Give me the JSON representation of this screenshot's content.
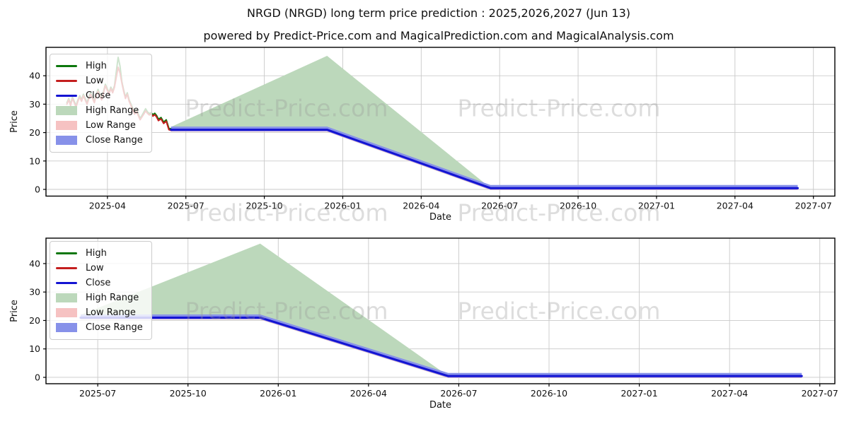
{
  "page": {
    "title": "NRGD (NRGD) long term price prediction : 2025,2026,2027 (Jun 13)",
    "subtitle": "powered by Predict-Price.com and MagicalPrediction.com and MagicalAnalysis.com",
    "watermark_text": "Predict-Price.com"
  },
  "colors": {
    "high_line": "#0c770c",
    "low_line": "#c41e1e",
    "close_line": "#1414d2",
    "high_range_fill": "#bcd8bb",
    "low_range_fill": "#f6c2c2",
    "close_range_fill": "#8791e9",
    "grid": "#c9c9c9",
    "axis": "#000000",
    "text": "#111111",
    "watermark": "#999999"
  },
  "legend": {
    "items": [
      {
        "label": "High",
        "type": "line",
        "color_key": "high_line"
      },
      {
        "label": "Low",
        "type": "line",
        "color_key": "low_line"
      },
      {
        "label": "Close",
        "type": "line",
        "color_key": "close_line"
      },
      {
        "label": "High Range",
        "type": "patch",
        "color_key": "high_range_fill"
      },
      {
        "label": "Low Range",
        "type": "patch",
        "color_key": "low_range_fill"
      },
      {
        "label": "Close Range",
        "type": "patch",
        "color_key": "close_range_fill"
      }
    ]
  },
  "chart_data": [
    {
      "type": "area",
      "title": "top: history + long term prediction",
      "xlabel": "Date",
      "ylabel": "Price",
      "x_unit": "months since 2025-01-01",
      "xlim": [
        0.65,
        30.82
      ],
      "ylim": [
        -2.36,
        50.0
      ],
      "grid": true,
      "legend_position": "upper left",
      "x_ticks": [
        {
          "t": 3,
          "label": "2025-04"
        },
        {
          "t": 6,
          "label": "2025-07"
        },
        {
          "t": 9,
          "label": "2025-10"
        },
        {
          "t": 12,
          "label": "2026-01"
        },
        {
          "t": 15,
          "label": "2026-04"
        },
        {
          "t": 18,
          "label": "2026-07"
        },
        {
          "t": 21,
          "label": "2026-10"
        },
        {
          "t": 24,
          "label": "2027-01"
        },
        {
          "t": 27,
          "label": "2027-04"
        },
        {
          "t": 30,
          "label": "2027-07"
        }
      ],
      "y_ticks": [
        0,
        10,
        20,
        30,
        40
      ],
      "prediction_start_date": "2025-06-13",
      "peak_date": "2025-12-13",
      "peak_high": 47,
      "flat_close_value": 21,
      "end_close_value": 0.45,
      "end_date": "2027-06-13",
      "series": {
        "hist_low": {
          "x": [
            1.45,
            1.52,
            1.59,
            1.66,
            1.73,
            1.8,
            1.87,
            1.94,
            2.01,
            2.08,
            2.15,
            2.22,
            2.29,
            2.36,
            2.43,
            2.5,
            2.57,
            2.64,
            2.71,
            2.78,
            2.85,
            2.92,
            2.99,
            3.06,
            3.13,
            3.2,
            3.27,
            3.34,
            3.41,
            3.48,
            3.55,
            3.62,
            3.69,
            3.76,
            3.83,
            3.9,
            3.97,
            4.04,
            4.11,
            4.18,
            4.25,
            4.32,
            4.39,
            4.46,
            4.53,
            4.6,
            4.67,
            4.74,
            4.81,
            4.88,
            4.95,
            5.05,
            5.15,
            5.25,
            5.35,
            5.43
          ],
          "y": [
            30,
            31.5,
            29.5,
            32,
            30.5,
            29,
            31,
            32.5,
            31,
            33,
            31.5,
            30,
            32,
            33.5,
            32,
            30.5,
            33,
            34.5,
            33,
            31.5,
            34,
            36.5,
            35,
            33.5,
            35.5,
            34,
            36,
            39.5,
            43,
            41,
            37.5,
            34.5,
            32,
            33.5,
            31,
            29.5,
            28,
            26.5,
            27.5,
            26,
            24.5,
            25.5,
            26.5,
            27.6,
            26.8,
            26.2,
            26.5,
            25.8,
            26.3,
            25.5,
            24.2,
            24.8,
            23.2,
            24.0,
            21.0,
            20.8
          ]
        },
        "hist_high": {
          "x": [
            1.45,
            1.52,
            1.59,
            1.66,
            1.73,
            1.8,
            1.87,
            1.94,
            2.01,
            2.08,
            2.15,
            2.22,
            2.29,
            2.36,
            2.43,
            2.5,
            2.57,
            2.64,
            2.71,
            2.78,
            2.85,
            2.92,
            2.99,
            3.06,
            3.13,
            3.2,
            3.27,
            3.34,
            3.41,
            3.48,
            3.55,
            3.62,
            3.69,
            3.76,
            3.83,
            3.9,
            3.97,
            4.04,
            4.11,
            4.18,
            4.25,
            4.32,
            4.39,
            4.46,
            4.53,
            4.6,
            4.67,
            4.74,
            4.81,
            4.88,
            4.95,
            5.05,
            5.15,
            5.25,
            5.35,
            5.43
          ],
          "y": [
            30.5,
            32,
            30,
            32.5,
            31,
            29.5,
            31.5,
            33,
            31.5,
            33.5,
            32,
            30.5,
            32.5,
            34,
            32.5,
            31,
            33.5,
            35.2,
            33.5,
            32,
            34.5,
            37,
            35.5,
            34,
            36,
            34.5,
            36.5,
            41.5,
            46.5,
            43.5,
            38,
            35,
            32.5,
            34,
            31.5,
            30,
            28.5,
            27,
            28,
            26.5,
            25,
            26,
            27.2,
            28.4,
            27.3,
            26.7,
            27,
            26.3,
            26.8,
            26,
            24.7,
            25.3,
            23.7,
            24.5,
            21.5,
            21.3
          ]
        },
        "close": {
          "x": [
            5.43,
            11.4,
            17.65,
            29.4
          ],
          "y": [
            21,
            21,
            0.45,
            0.45
          ]
        },
        "high_range": {
          "x": [
            5.43,
            11.4,
            17.65
          ],
          "top": [
            22,
            47,
            0.5
          ],
          "bottom": [
            21,
            21,
            0.45
          ]
        },
        "low_range": {
          "x": [
            5.43,
            11.4,
            17.65,
            29.4
          ],
          "top": [
            21.2,
            21.2,
            0.65,
            0.65
          ],
          "bottom": [
            20.3,
            20.3,
            -0.25,
            -0.25
          ]
        },
        "close_range": {
          "x": [
            5.43,
            11.4,
            17.65,
            29.4
          ],
          "top": [
            22.1,
            22.1,
            1.55,
            1.55
          ],
          "bottom": [
            20.45,
            20.45,
            -0.1,
            -0.1
          ]
        }
      }
    },
    {
      "type": "area",
      "title": "bottom: prediction only",
      "xlabel": "Date",
      "ylabel": "Price",
      "x_unit": "months since 2025-01-01",
      "xlim": [
        4.28,
        30.5
      ],
      "ylim": [
        -2.24,
        48.94
      ],
      "grid": true,
      "legend_position": "upper left",
      "x_ticks": [
        {
          "t": 6,
          "label": "2025-07"
        },
        {
          "t": 9,
          "label": "2025-10"
        },
        {
          "t": 12,
          "label": "2026-01"
        },
        {
          "t": 15,
          "label": "2026-04"
        },
        {
          "t": 18,
          "label": "2026-07"
        },
        {
          "t": 21,
          "label": "2026-10"
        },
        {
          "t": 24,
          "label": "2027-01"
        },
        {
          "t": 27,
          "label": "2027-04"
        },
        {
          "t": 30,
          "label": "2027-07"
        }
      ],
      "y_ticks": [
        0,
        10,
        20,
        30,
        40
      ],
      "prediction_start_date": "2025-06-13",
      "peak_date": "2025-12-13",
      "peak_high": 47,
      "flat_close_value": 21,
      "end_close_value": 0.45,
      "end_date": "2027-06-13",
      "series": {
        "close": {
          "x": [
            5.43,
            11.4,
            17.65,
            29.4
          ],
          "y": [
            21,
            21,
            0.45,
            0.45
          ]
        },
        "high_range": {
          "x": [
            5.43,
            11.4,
            17.65
          ],
          "top": [
            22,
            47,
            0.5
          ],
          "bottom": [
            21,
            21,
            0.45
          ]
        },
        "low_range": {
          "x": [
            5.43,
            11.4,
            17.65,
            29.4
          ],
          "top": [
            21.2,
            21.2,
            0.65,
            0.65
          ],
          "bottom": [
            20.3,
            20.3,
            -0.25,
            -0.25
          ]
        },
        "close_range": {
          "x": [
            5.43,
            11.4,
            17.65,
            29.4
          ],
          "top": [
            22.1,
            22.1,
            1.55,
            1.55
          ],
          "bottom": [
            20.45,
            20.45,
            -0.1,
            -0.1
          ]
        }
      }
    }
  ]
}
